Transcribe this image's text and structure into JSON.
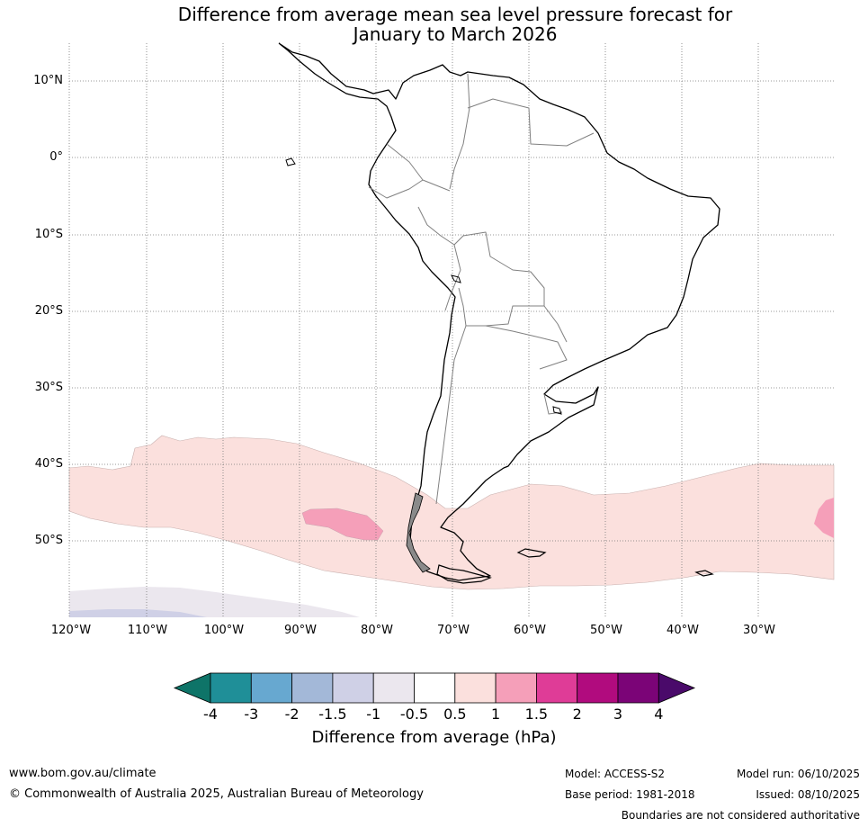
{
  "title_line1": "Difference from average mean sea level pressure forecast for",
  "title_line2": "January to March 2026",
  "latitudes": [
    "10°N",
    "0°",
    "10°S",
    "20°S",
    "30°S",
    "40°S",
    "50°S"
  ],
  "longitudes": [
    "120°W",
    "110°W",
    "100°W",
    "90°W",
    "80°W",
    "70°W",
    "60°W",
    "50°W",
    "40°W",
    "30°W"
  ],
  "colorbar": {
    "label": "Difference from average (hPa)",
    "ticks": [
      "-4",
      "-3",
      "-2",
      "-1.5",
      "-1",
      "-0.5",
      "0.5",
      "1",
      "1.5",
      "2",
      "3",
      "4"
    ],
    "colors": {
      "below": "#0e7468",
      "bins": [
        "#1f8f98",
        "#67a8d0",
        "#a3b8d8",
        "#cfd0e6",
        "#ebe7ee",
        "#ffffff",
        "#fbe0dd",
        "#f59fb9",
        "#df3c97",
        "#b10b7e",
        "#7b0477"
      ],
      "above": "#4a0a6a"
    }
  },
  "footer": {
    "website": "www.bom.gov.au/climate",
    "copyright": "© Commonwealth of Australia 2025, Australian Bureau of Meteorology",
    "model": "Model: ACCESS-S2",
    "base_period": "Base period: 1981-2018",
    "model_run": "Model run: 06/10/2025",
    "issued": "Issued: 08/10/2025",
    "disclaimer": "Boundaries are not considered authoritative"
  }
}
